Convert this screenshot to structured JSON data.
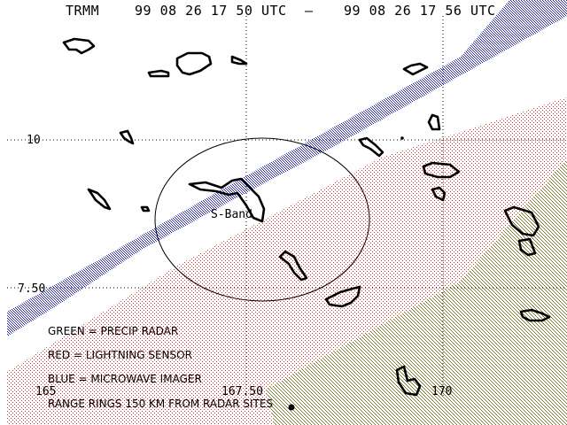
{
  "header": {
    "satellite": "TRMM",
    "start_time": "99 08 26 17 50 UTC",
    "separator": "–",
    "end_time": "99 08 26 17 56 UTC"
  },
  "axes": {
    "lat_labels": [
      "10",
      "7.50"
    ],
    "lon_labels": [
      "165",
      "167.50",
      "170"
    ]
  },
  "radar_site": {
    "label": "S-Band"
  },
  "legend": {
    "green": "GREEN = PRECIP RADAR",
    "red": "RED = LIGHTNING SENSOR",
    "blue": "BLUE = MICROWAVE IMAGER",
    "rings": "RANGE RINGS 150 KM FROM RADAR SITES"
  },
  "colors": {
    "precip_radar": "#00b000",
    "lightning_sensor": "#e03030",
    "microwave_imager": "#2020c0",
    "land": "#000000"
  }
}
